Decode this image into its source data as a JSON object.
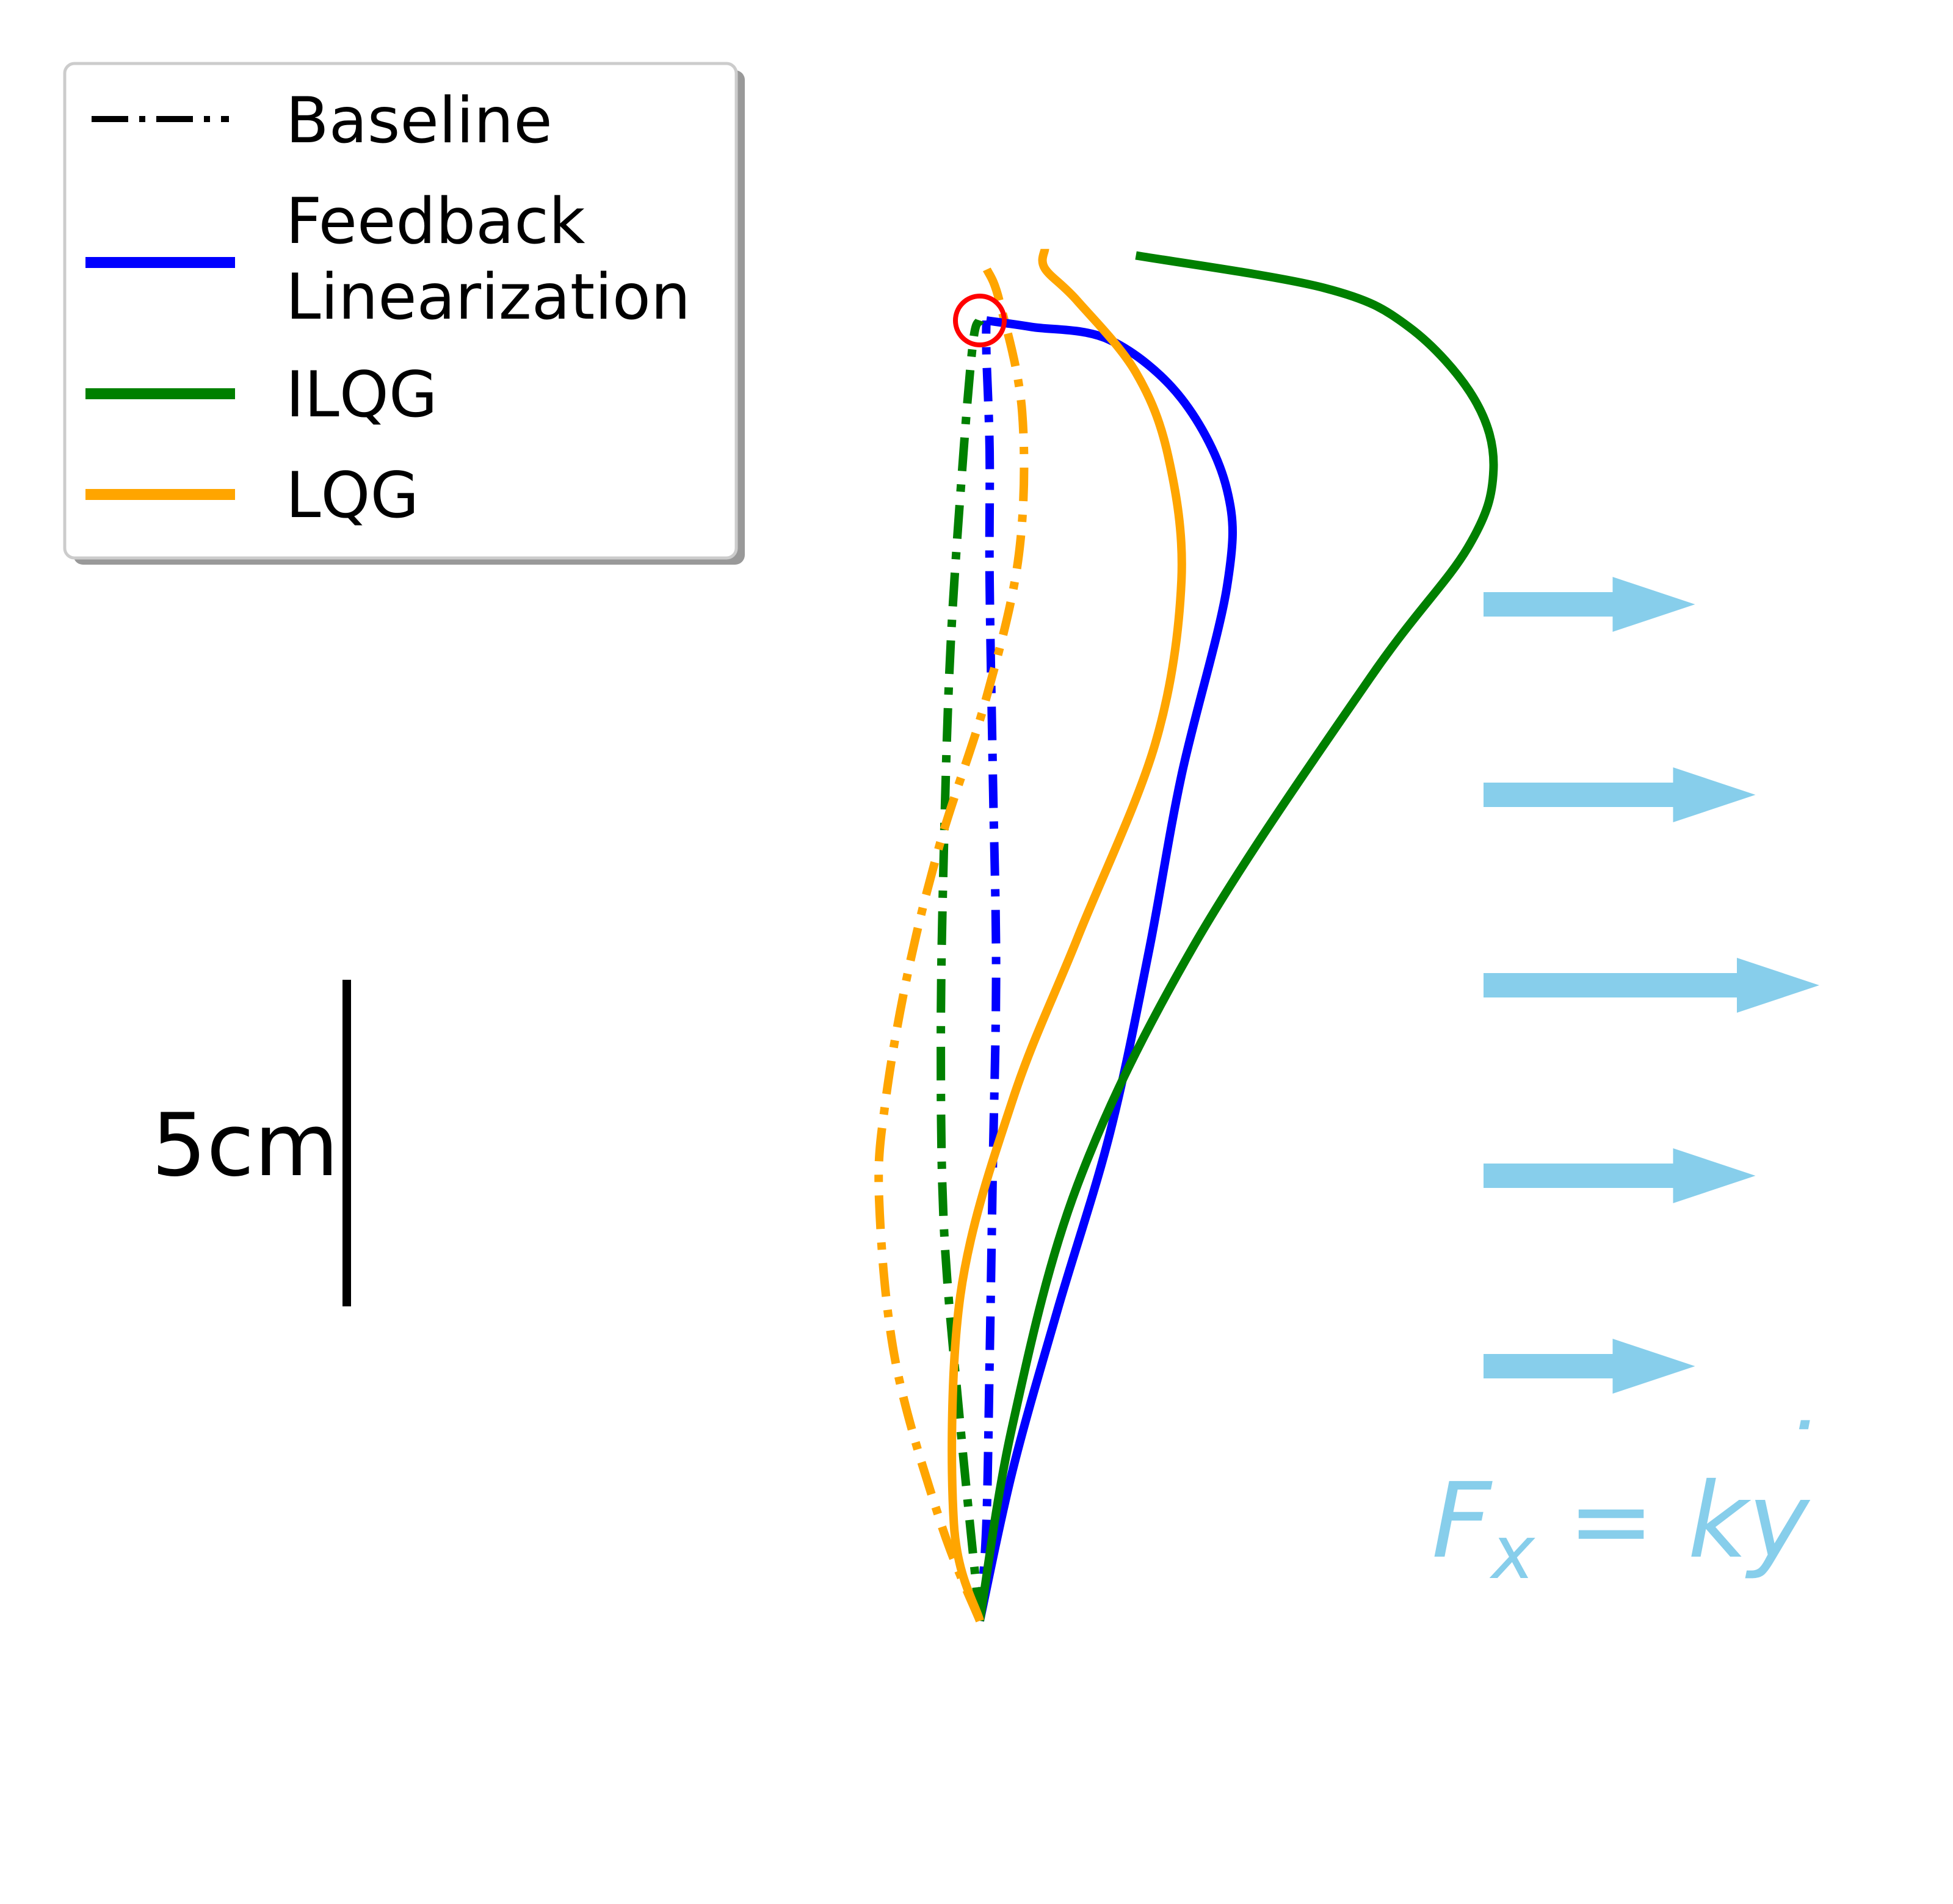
{
  "colors": {
    "baseline": "#000000",
    "feedback_linearization": "#0000ff",
    "ilqg": "#008000",
    "lqg": "#ffa500",
    "target": "#ff0000",
    "force": "#87ceeb"
  },
  "legend": {
    "placement": "top-left",
    "items": [
      {
        "label_lines": [
          "Baseline"
        ],
        "style": "dashdot",
        "color": "#000000"
      },
      {
        "label_lines": [
          "Feedback",
          "Linearization"
        ],
        "style": "solid",
        "color": "#0000ff"
      },
      {
        "label_lines": [
          "ILQG"
        ],
        "style": "solid",
        "color": "#008000"
      },
      {
        "label_lines": [
          "LQG"
        ],
        "style": "solid",
        "color": "#ffa500"
      }
    ]
  },
  "scale_bar": {
    "label": "5cm",
    "length_cm": 5
  },
  "force_field": {
    "label_main": "F",
    "label_sub": "x",
    "label_eq": " = ky",
    "label_dot": "˙",
    "arrow_magnitudes": [
      0.63,
      0.81,
      1.0,
      0.81,
      0.63
    ]
  },
  "chart_data": {
    "type": "line",
    "units": "cm",
    "start": [
      0.0,
      0.0
    ],
    "target": [
      0.0,
      20.0
    ],
    "series": [
      {
        "name": "Baseline",
        "controller": "feedback_linearization",
        "style": "dashdot",
        "color": "#0000ff",
        "points": [
          [
            0,
            0
          ],
          [
            0.1,
            1.5
          ],
          [
            0.15,
            4
          ],
          [
            0.2,
            7
          ],
          [
            0.25,
            10
          ],
          [
            0.2,
            13
          ],
          [
            0.15,
            16
          ],
          [
            0.15,
            18
          ],
          [
            0.1,
            19.5
          ],
          [
            0.1,
            20
          ]
        ]
      },
      {
        "name": "Baseline",
        "controller": "ilqg",
        "style": "dashdot",
        "color": "#008000",
        "points": [
          [
            0,
            0
          ],
          [
            -0.3,
            3
          ],
          [
            -0.55,
            6
          ],
          [
            -0.6,
            9
          ],
          [
            -0.55,
            12
          ],
          [
            -0.45,
            15
          ],
          [
            -0.25,
            18
          ],
          [
            -0.1,
            19.7
          ],
          [
            0,
            20
          ]
        ]
      },
      {
        "name": "Baseline",
        "controller": "lqg",
        "style": "dashdot",
        "color": "#ffa500",
        "points": [
          [
            0,
            0
          ],
          [
            -0.6,
            1.5
          ],
          [
            -1.3,
            4
          ],
          [
            -1.55,
            6.5
          ],
          [
            -1.45,
            8
          ],
          [
            -1.1,
            10
          ],
          [
            -0.6,
            12
          ],
          [
            0.1,
            14.2
          ],
          [
            0.6,
            16.4
          ],
          [
            0.65,
            18.6
          ],
          [
            0.3,
            20.3
          ],
          [
            0.1,
            20.8
          ]
        ]
      },
      {
        "name": "Feedback Linearization",
        "style": "solid",
        "color": "#0000ff",
        "points": [
          [
            0,
            0
          ],
          [
            0.5,
            2.3
          ],
          [
            1.2,
            4.8
          ],
          [
            2.0,
            7.5
          ],
          [
            2.6,
            10.3
          ],
          [
            3.1,
            13
          ],
          [
            3.8,
            15.9
          ],
          [
            3.8,
            17.4
          ],
          [
            3.1,
            18.8
          ],
          [
            2.0,
            19.7
          ],
          [
            0.8,
            19.9
          ],
          [
            0.1,
            20
          ]
        ]
      },
      {
        "name": "ILQG",
        "style": "solid",
        "color": "#008000",
        "points": [
          [
            0,
            0
          ],
          [
            0.5,
            3
          ],
          [
            1.5,
            6.7
          ],
          [
            3.3,
            10.4
          ],
          [
            6.0,
            14.5
          ],
          [
            7.5,
            16.5
          ],
          [
            7.9,
            17.7
          ],
          [
            7.6,
            18.8
          ],
          [
            6.6,
            19.9
          ],
          [
            5.3,
            20.5
          ],
          [
            2.4,
            21
          ]
        ]
      },
      {
        "name": "LQG",
        "style": "solid",
        "color": "#ffa500",
        "points": [
          [
            0,
            0
          ],
          [
            -0.4,
            1.5
          ],
          [
            -0.3,
            5
          ],
          [
            0.5,
            8
          ],
          [
            1.5,
            10.5
          ],
          [
            2.7,
            13.5
          ],
          [
            3.1,
            16
          ],
          [
            2.9,
            17.9
          ],
          [
            2.4,
            19.2
          ],
          [
            1.5,
            20.3
          ],
          [
            1.0,
            20.8
          ],
          [
            1.0,
            21.1
          ]
        ]
      }
    ]
  }
}
